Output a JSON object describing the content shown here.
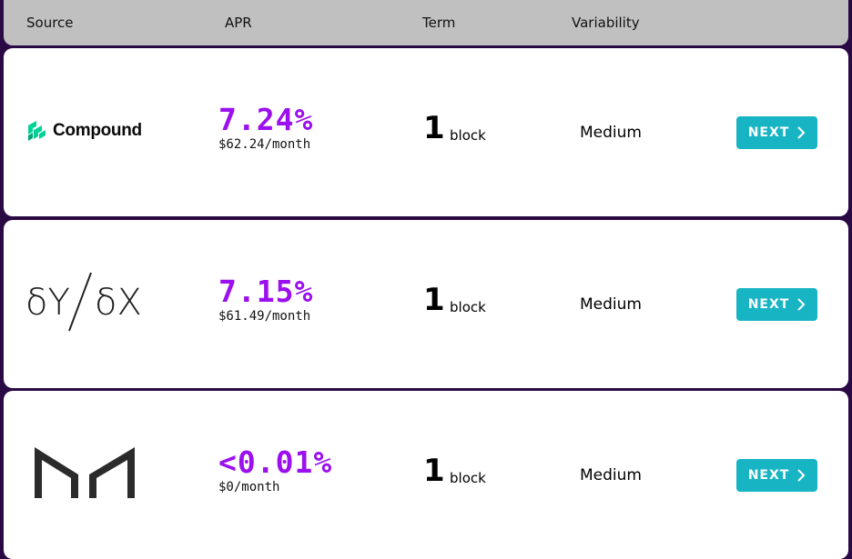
{
  "header": {
    "source": "Source",
    "apr": "APR",
    "term": "Term",
    "variability": "Variability"
  },
  "rows": [
    {
      "logo": "compound-logo",
      "logo_text": "Compound",
      "rate": "7.24%",
      "monthly": "$62.24/month",
      "term_num": "1",
      "term_unit": "block",
      "variability": "Medium",
      "button": "NEXT"
    },
    {
      "logo": "dydx-logo",
      "logo_text": "δY/δX",
      "rate": "7.15%",
      "monthly": "$61.49/month",
      "term_num": "1",
      "term_unit": "block",
      "variability": "Medium",
      "button": "NEXT"
    },
    {
      "logo": "maker-logo",
      "rate": "<0.01%",
      "monthly": "$0/month",
      "term_num": "1",
      "term_unit": "block",
      "variability": "Medium",
      "button": "NEXT"
    }
  ],
  "colors": {
    "background": "#2a0a44",
    "header_bg": "#c0c0c0",
    "rate": "#9b10ee",
    "button": "#17b4c4",
    "compound_green": "#00d395"
  }
}
